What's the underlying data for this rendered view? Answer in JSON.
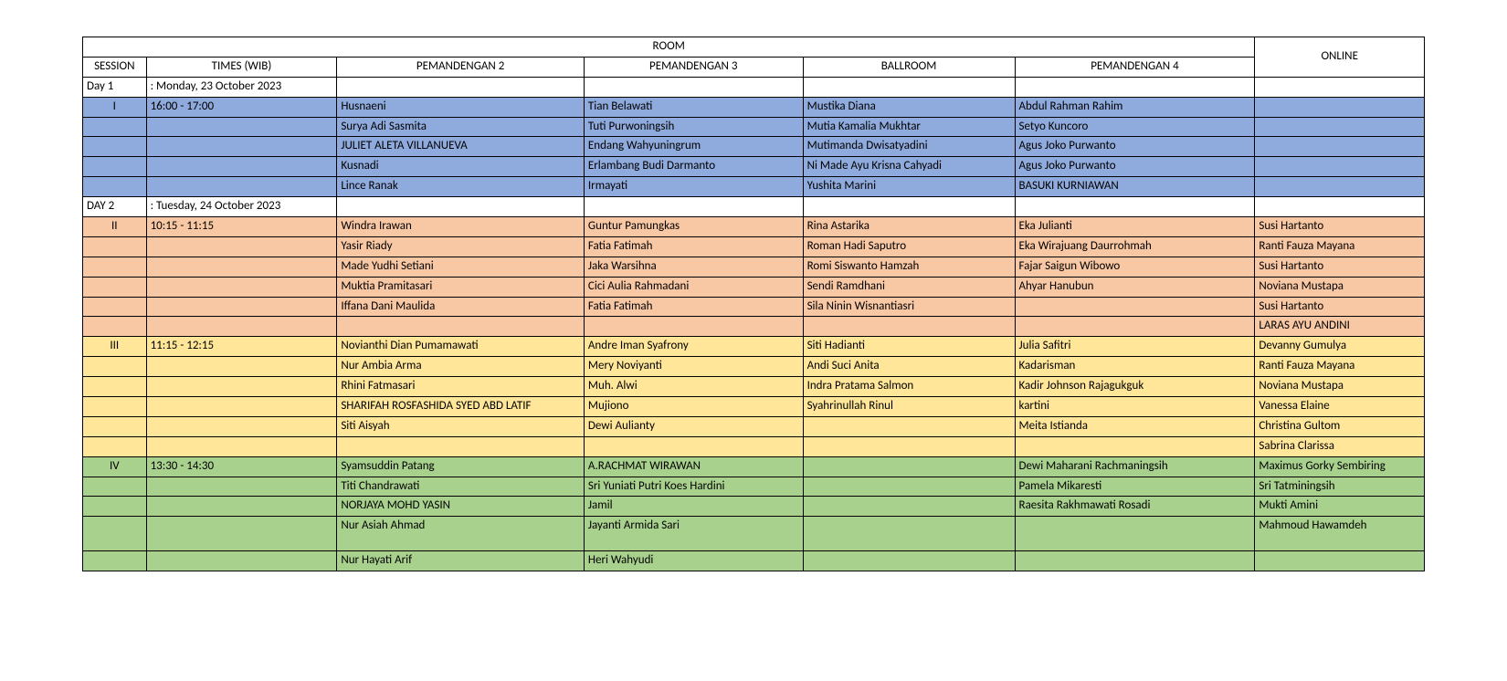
{
  "headers": {
    "room": "ROOM",
    "session": "SESSION",
    "times": "TIMES (WIB)",
    "p2": "PEMANDENGAN 2",
    "p3": "PEMANDENGAN 3",
    "ballroom": "BALLROOM",
    "p4": "PEMANDENGAN 4",
    "online": "ONLINE"
  },
  "rows": [
    {
      "style": "row-white",
      "session": "Day 1",
      "session_align": "left",
      "times": ": Monday, 23 October 2023",
      "p2": "",
      "p3": "",
      "ball": "",
      "p4": "",
      "online": ""
    },
    {
      "style": "row-blue",
      "session": "I",
      "session_align": "center",
      "times": "16:00 - 17:00",
      "p2": "Husnaeni",
      "p3": "Tian Belawati",
      "ball": "Mustika Diana",
      "p4": "Abdul Rahman Rahim",
      "online": ""
    },
    {
      "style": "row-blue",
      "session": "",
      "session_align": "center",
      "times": "",
      "p2": "Surya Adi Sasmita",
      "p3": "Tuti Purwoningsih",
      "ball": "Mutia Kamalia Mukhtar",
      "p4": "Setyo Kuncoro",
      "online": ""
    },
    {
      "style": "row-blue",
      "session": "",
      "session_align": "center",
      "times": "",
      "p2": "JULIET ALETA VILLANUEVA",
      "p3": "Endang  Wahyuningrum",
      "ball": "Mutimanda Dwisatyadini",
      "p4": "Agus Joko Purwanto",
      "online": ""
    },
    {
      "style": "row-blue",
      "session": "",
      "session_align": "center",
      "times": "",
      "p2": "Kusnadi",
      "p3": "Erlambang Budi Darmanto",
      "ball": "Ni Made Ayu Krisna Cahyadi",
      "p4": "Agus Joko Purwanto",
      "online": ""
    },
    {
      "style": "row-blue",
      "session": "",
      "session_align": "center",
      "times": "",
      "p2": "Lince Ranak",
      "p3": "Irmayati",
      "ball": "Yushita Marini",
      "p4": "BASUKI KURNIAWAN",
      "online": ""
    },
    {
      "style": "row-white",
      "session": "DAY 2",
      "session_align": "left",
      "times": ": Tuesday, 24 October 2023",
      "p2": "",
      "p3": "",
      "ball": "",
      "p4": "",
      "online": ""
    },
    {
      "style": "row-orange",
      "session": "II",
      "session_align": "center",
      "times": "10:15 - 11:15",
      "p2": "Windra Irawan",
      "p3": "Guntur Pamungkas",
      "ball": "Rina Astarika",
      "p4": "Eka Julianti",
      "online": "Susi Hartanto"
    },
    {
      "style": "row-orange",
      "session": "",
      "session_align": "center",
      "times": "",
      "p2": "Yasir Riady",
      "p3": "Fatia Fatimah",
      "ball": "Roman Hadi Saputro",
      "p4": "Eka Wirajuang Daurrohmah",
      "online": "Ranti Fauza Mayana"
    },
    {
      "style": "row-orange",
      "session": "",
      "session_align": "center",
      "times": "",
      "p2": "Made Yudhi Setiani",
      "p3": "Jaka Warsihna",
      "ball": "Romi Siswanto Hamzah",
      "p4": "Fajar Saigun Wibowo",
      "online": "Susi Hartanto"
    },
    {
      "style": "row-orange",
      "session": "",
      "session_align": "center",
      "times": "",
      "p2": "Muktia Pramitasari",
      "p3": "Cici Aulia Rahmadani",
      "ball": "Sendi Ramdhani",
      "p4": "Ahyar Hanubun",
      "online": "Noviana Mustapa"
    },
    {
      "style": "row-orange",
      "session": "",
      "session_align": "center",
      "times": "",
      "p2": "Iffana Dani Maulida",
      "p3": "Fatia Fatimah",
      "ball": "Sila Ninin Wisnantiasri",
      "p4": "",
      "online": "Susi Hartanto"
    },
    {
      "style": "row-orange",
      "session": "",
      "session_align": "center",
      "times": "",
      "p2": "",
      "p3": "",
      "ball": "",
      "p4": "",
      "online": "LARAS AYU ANDINI"
    },
    {
      "style": "row-yellow",
      "session": "III",
      "session_align": "center",
      "times": "11:15 - 12:15",
      "p2": "Novianthi Dian Pumamawati",
      "p3": "Andre Iman Syafrony",
      "ball": "Siti Hadianti",
      "p4": "Julia Safitri",
      "online": "Devanny  Gumulya"
    },
    {
      "style": "row-yellow",
      "session": "",
      "session_align": "center",
      "times": "",
      "p2": "Nur Ambia Arma",
      "p3": "Mery Noviyanti",
      "ball": "Andi Suci Anita",
      "p4": "Kadarisman",
      "online": "Ranti Fauza  Mayana"
    },
    {
      "style": "row-yellow",
      "session": "",
      "session_align": "center",
      "times": "",
      "p2": "Rhini Fatmasari",
      "p3": "Muh. Alwi",
      "ball": "Indra Pratama Salmon",
      "p4": "Kadir Johnson Rajagukguk",
      "online": "Noviana  Mustapa"
    },
    {
      "style": "row-yellow",
      "session": "",
      "session_align": "center",
      "times": "",
      "p2": "SHARIFAH ROSFASHIDA SYED ABD LATIF",
      "p3": "Mujiono",
      "ball": "Syahrinullah Rinul",
      "p4": "kartini",
      "online": "Vanessa   Elaine"
    },
    {
      "style": "row-yellow",
      "session": "",
      "session_align": "center",
      "times": "",
      "p2": "Siti Aisyah",
      "p3": "Dewi Aulianty",
      "ball": "",
      "p4": "Meita Istianda",
      "online": "Christina  Gultom"
    },
    {
      "style": "row-yellow",
      "session": "",
      "session_align": "center",
      "times": "",
      "p2": "",
      "p3": "",
      "ball": "",
      "p4": "",
      "online": "Sabrina  Clarissa"
    },
    {
      "style": "row-green",
      "session": "IV",
      "session_align": "center",
      "session_valign": "bottom",
      "times": "13:30 - 14:30",
      "times_valign": "bottom",
      "p2": "Syamsuddin Patang",
      "p3": "A.RACHMAT WIRAWAN",
      "ball": "",
      "p4": "Dewi Maharani Rachmaningsih",
      "online": "Maximus Gorky Sembiring"
    },
    {
      "style": "row-green",
      "session": "",
      "session_align": "center",
      "times": "",
      "p2": "Titi Chandrawati",
      "p3": "Sri Yuniati Putri Koes Hardini",
      "ball": "",
      "p4": "Pamela Mikaresti",
      "online": "Sri Tatminingsih"
    },
    {
      "style": "row-green",
      "session": "",
      "session_align": "center",
      "times": "",
      "p2": "NORJAYA MOHD YASIN",
      "p3": "Jamil",
      "ball": "",
      "p4": "Raesita Rakhmawati Rosadi",
      "online": "Mukti Amini"
    },
    {
      "style": "row-green",
      "session": "",
      "session_align": "center",
      "times": "",
      "p2": "Nur Asiah Ahmad",
      "p3": "Jayanti Armida Sari",
      "ball": "",
      "p4": "",
      "online": "Mahmoud Hawamdeh",
      "extra_height": true
    },
    {
      "style": "row-green",
      "session": "",
      "session_align": "center",
      "times": "",
      "p2": "Nur Hayati Arif",
      "p3": "Heri Wahyudi",
      "ball": "",
      "p4": "",
      "online": ""
    }
  ],
  "colors": {
    "white": "#ffffff",
    "blue": "#8faadc",
    "orange": "#f8c7a4",
    "yellow": "#ffe699",
    "green": "#a9d18e",
    "border": "#000000"
  },
  "font_size_pt": 10
}
